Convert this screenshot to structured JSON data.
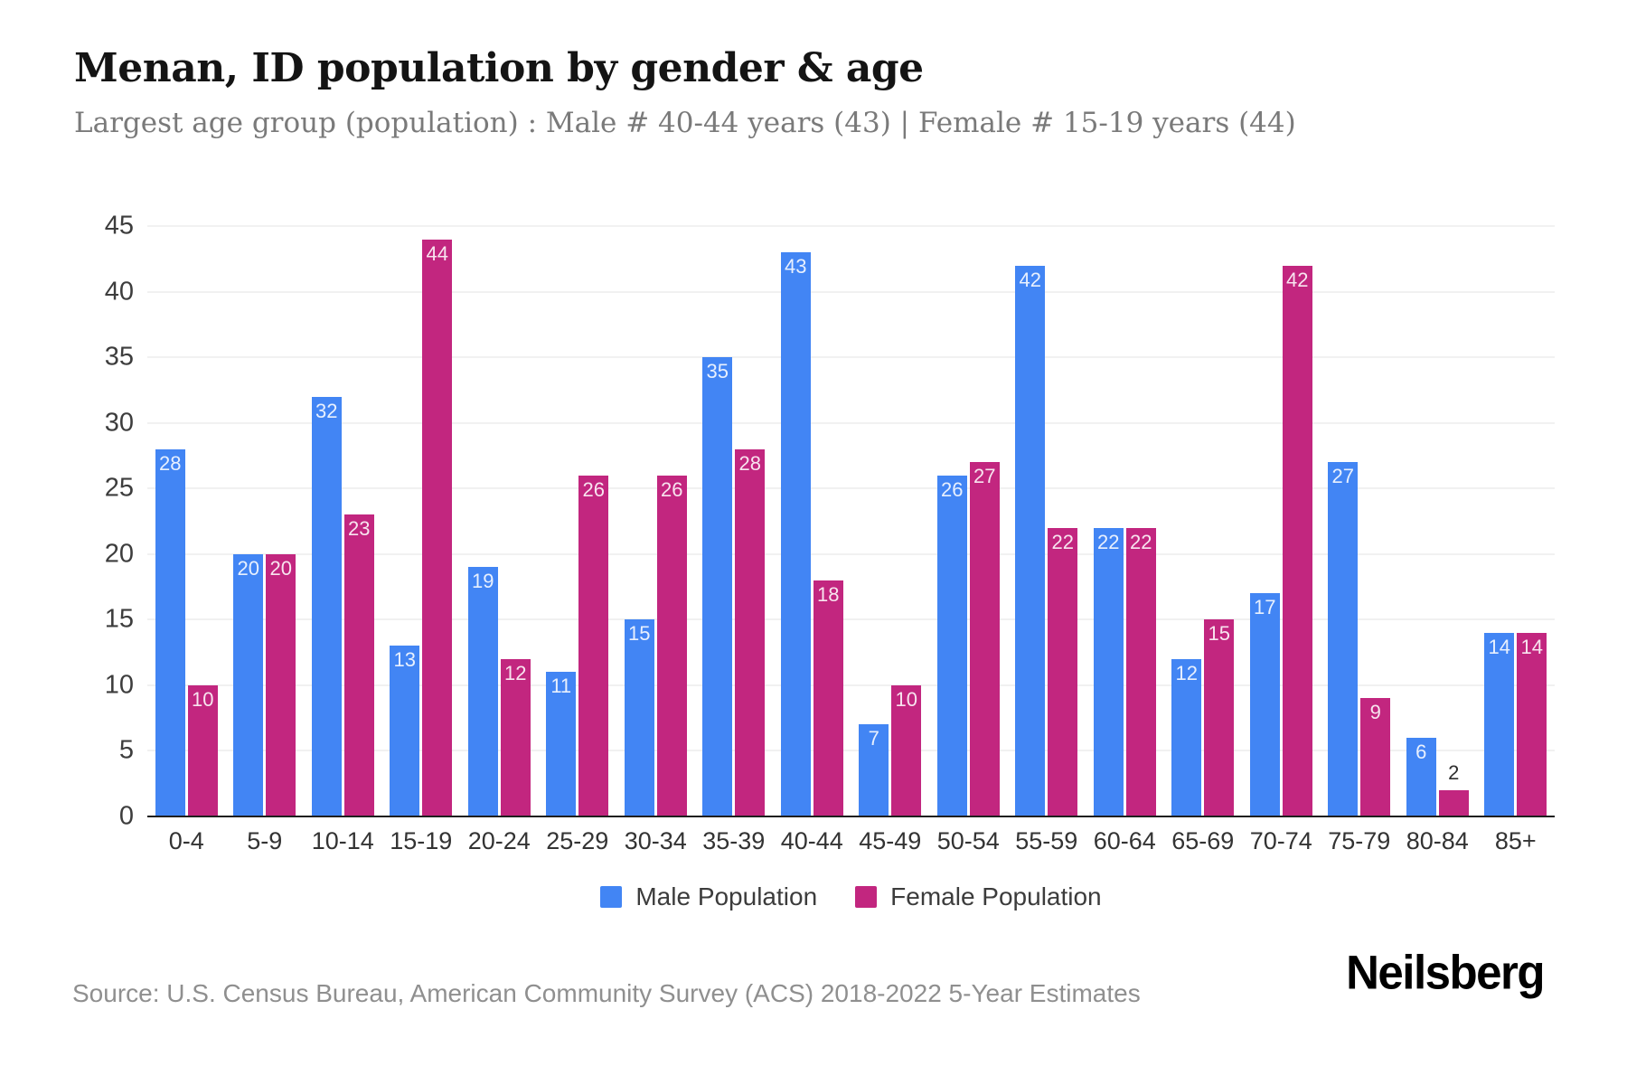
{
  "header": {
    "title": "Menan, ID population by gender & age",
    "subtitle": "Largest age group (population) : Male # 40-44 years (43) | Female # 15-19 years (44)"
  },
  "legend": {
    "male": "Male Population",
    "female": "Female Population"
  },
  "footer": {
    "source": "Source: U.S. Census Bureau, American Community Survey (ACS) 2018-2022 5-Year Estimates",
    "brand": "Neilsberg"
  },
  "colors": {
    "male": "#4285f4",
    "female": "#c2267f",
    "grid": "#f1f1f1",
    "axis": "#1f1f1f",
    "inside_label": "rgba(255,255,255,0.88)",
    "outside_label": "#2e2e2e"
  },
  "chart_data": {
    "type": "bar",
    "title": "Menan, ID population by gender & age",
    "xlabel": "",
    "ylabel": "",
    "categories": [
      "0-4",
      "5-9",
      "10-14",
      "15-19",
      "20-24",
      "25-29",
      "30-34",
      "35-39",
      "40-44",
      "45-49",
      "50-54",
      "55-59",
      "60-64",
      "65-69",
      "70-74",
      "75-79",
      "80-84",
      "85+"
    ],
    "series": [
      {
        "name": "Male Population",
        "color": "#4285f4",
        "values": [
          28,
          20,
          32,
          13,
          19,
          11,
          15,
          35,
          43,
          7,
          26,
          42,
          22,
          12,
          17,
          27,
          6,
          14
        ]
      },
      {
        "name": "Female Population",
        "color": "#c2267f",
        "values": [
          10,
          20,
          23,
          44,
          12,
          26,
          26,
          28,
          18,
          10,
          27,
          22,
          22,
          15,
          42,
          9,
          2,
          14
        ]
      }
    ],
    "ylim": [
      0,
      45
    ],
    "yticks": [
      0,
      5,
      10,
      15,
      20,
      25,
      30,
      35,
      40,
      45
    ],
    "grid": true,
    "legend_position": "bottom",
    "value_labels": "inside-top"
  }
}
